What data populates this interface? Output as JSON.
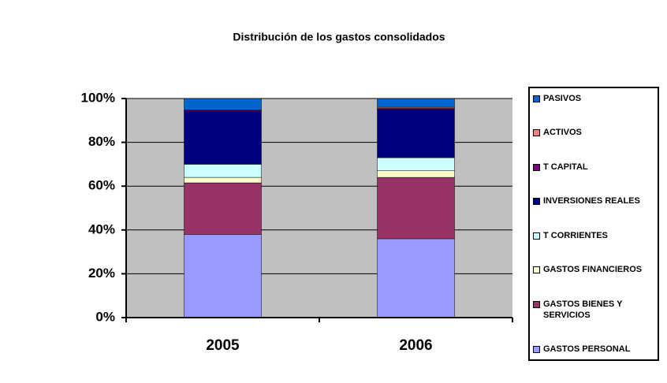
{
  "chart_data": {
    "type": "stacked_bar_percent",
    "title": "Distribución de los gastos consolidados",
    "categories": [
      "2005",
      "2006"
    ],
    "series": [
      {
        "name": "GASTOS PERSONAL",
        "color": "#9999ff",
        "values": [
          38,
          36
        ]
      },
      {
        "name": "GASTOS BIENES Y SERVICIOS",
        "color": "#993366",
        "values": [
          23.5,
          28
        ]
      },
      {
        "name": "GASTOS FINANCIEROS",
        "color": "#ffffcc",
        "values": [
          2.5,
          3
        ]
      },
      {
        "name": "T CORRIENTES",
        "color": "#ccffff",
        "values": [
          6,
          6
        ]
      },
      {
        "name": "INVERSIONES REALES",
        "color": "#000080",
        "values": [
          24,
          22
        ]
      },
      {
        "name": "T CAPITAL",
        "color": "#800080",
        "values": [
          0.5,
          0.5
        ]
      },
      {
        "name": "ACTIVOS",
        "color": "#ff8080",
        "values": [
          0.3,
          0.5
        ]
      },
      {
        "name": "PASIVOS",
        "color": "#0066cc",
        "values": [
          5.2,
          4
        ]
      }
    ],
    "ylim": [
      0,
      100
    ],
    "yticks": [
      {
        "value": 0,
        "label": "0%"
      },
      {
        "value": 20,
        "label": "20%"
      },
      {
        "value": 40,
        "label": "40%"
      },
      {
        "value": 60,
        "label": "60%"
      },
      {
        "value": 80,
        "label": "80%"
      },
      {
        "value": 100,
        "label": "100%"
      }
    ],
    "grid": true,
    "legend": "right"
  }
}
